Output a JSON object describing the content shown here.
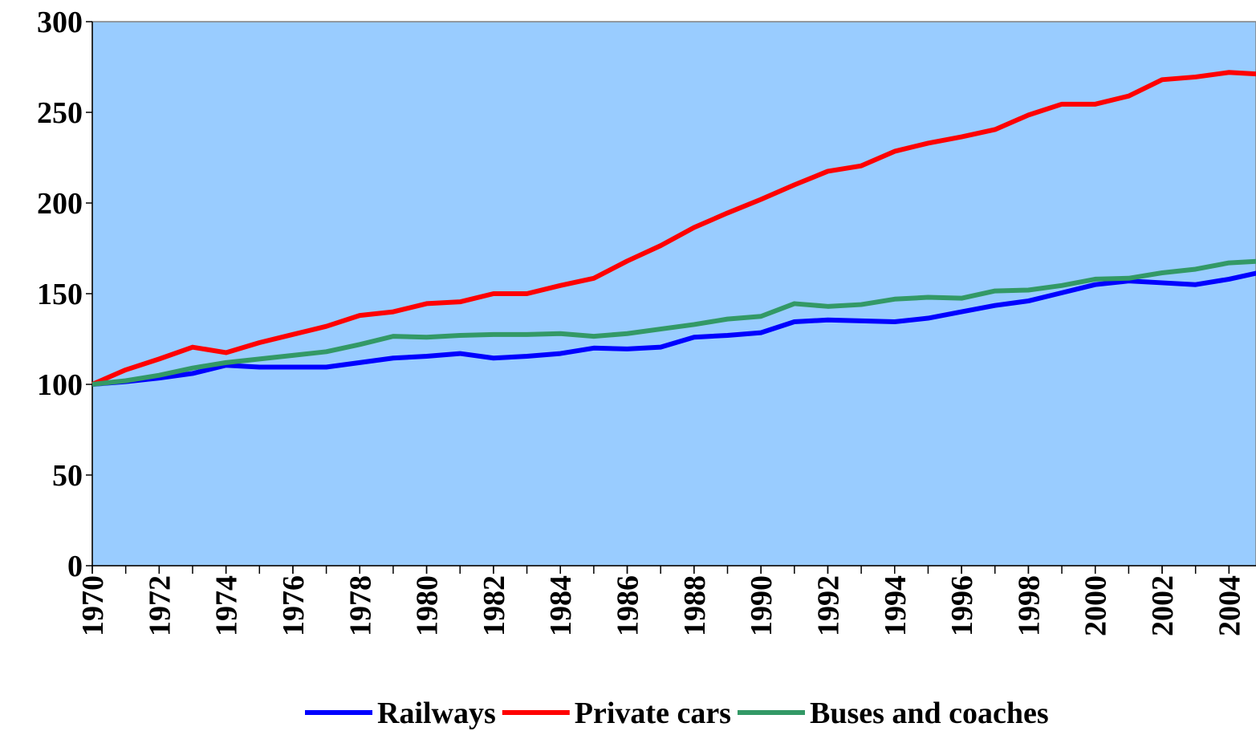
{
  "chart_data": {
    "type": "line",
    "x": [
      1970,
      1971,
      1972,
      1973,
      1974,
      1975,
      1976,
      1977,
      1978,
      1979,
      1980,
      1981,
      1982,
      1983,
      1984,
      1985,
      1986,
      1987,
      1988,
      1989,
      1990,
      1991,
      1992,
      1993,
      1994,
      1995,
      1996,
      1997,
      1998,
      1999,
      2000,
      2001,
      2002,
      2003,
      2004,
      2005
    ],
    "series": [
      {
        "name": "Railways",
        "color": "#0000ff",
        "values": [
          100,
          101.5,
          103.5,
          106,
          110.5,
          109.5,
          109.5,
          109.5,
          112,
          114.5,
          115.5,
          117,
          114.5,
          115.5,
          117,
          120,
          119.5,
          120.5,
          126,
          127,
          128.5,
          134.5,
          135.5,
          135,
          134.5,
          136.5,
          140,
          143.5,
          146,
          150.5,
          155,
          157,
          156,
          155,
          158,
          162
        ]
      },
      {
        "name": "Private cars",
        "color": "#ff0000",
        "values": [
          100,
          108,
          114,
          120.5,
          117.5,
          123,
          127.5,
          132,
          138,
          140,
          144.5,
          145.5,
          150,
          150,
          154.5,
          158.5,
          168,
          176.5,
          186.5,
          194.5,
          202,
          210,
          217.5,
          220.5,
          228.5,
          233,
          236.5,
          240.5,
          248.5,
          254.5,
          254.5,
          259,
          268,
          269.5,
          272,
          271
        ]
      },
      {
        "name": "Buses and coaches",
        "color": "#339966",
        "values": [
          100,
          102,
          105,
          109,
          112,
          114,
          116,
          118,
          122,
          126.5,
          126,
          127,
          127.5,
          127.5,
          128,
          126.5,
          128,
          130.5,
          133,
          136,
          137.5,
          144.5,
          143,
          144,
          147,
          148,
          147.5,
          151.5,
          152,
          154.5,
          158,
          158.5,
          161.5,
          163.5,
          167,
          168
        ]
      }
    ],
    "xlim": [
      1970,
      2005
    ],
    "xticks": [
      1970,
      1972,
      1974,
      1976,
      1978,
      1980,
      1982,
      1984,
      1986,
      1988,
      1990,
      1992,
      1994,
      1996,
      1998,
      2000,
      2002,
      2004
    ],
    "ylim": [
      0,
      300
    ],
    "yticks": [
      0,
      50,
      100,
      150,
      200,
      250,
      300
    ],
    "grid": false,
    "plot_background": "#99ccff",
    "legend": "bottom"
  }
}
